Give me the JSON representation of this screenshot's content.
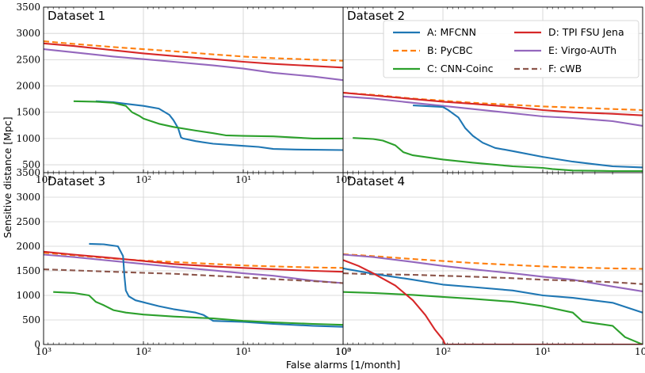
{
  "figure": {
    "xlabel": "False alarms [1/month]",
    "ylabel": "Sensitive distance [Mpc]"
  },
  "legend": [
    {
      "key": "A",
      "label": "A: MFCNN",
      "color": "#1f77b4",
      "dash": false
    },
    {
      "key": "B",
      "label": "B: PyCBC",
      "color": "#ff7f0e",
      "dash": true
    },
    {
      "key": "C",
      "label": "C: CNN-Coinc",
      "color": "#2ca02c",
      "dash": false
    },
    {
      "key": "D",
      "label": "D: TPI FSU Jena",
      "color": "#d62728",
      "dash": false
    },
    {
      "key": "E",
      "label": "E: Virgo-AUTh",
      "color": "#9467bd",
      "dash": false
    },
    {
      "key": "F",
      "label": "F: cWB",
      "color": "#8c564b",
      "dash": true
    }
  ],
  "chart_data": [
    {
      "type": "line",
      "title": "Dataset 1",
      "xscale": "log-reversed",
      "xlim": [
        1000,
        1
      ],
      "ylim": [
        350,
        3500
      ],
      "yticks": [
        "3500",
        "3000",
        "2500",
        "2000",
        "1500",
        "1000",
        "500"
      ],
      "xticks": [
        "10³",
        "10²",
        "10¹",
        "10⁰"
      ],
      "grid": true,
      "series": [
        {
          "key": "B",
          "name": "B: PyCBC",
          "x": [
            1000,
            500,
            200,
            100,
            50,
            20,
            10,
            5,
            2,
            1
          ],
          "y": [
            2850,
            2800,
            2740,
            2700,
            2660,
            2600,
            2560,
            2530,
            2500,
            2480
          ]
        },
        {
          "key": "D",
          "name": "D: TPI FSU Jena",
          "x": [
            1000,
            500,
            200,
            100,
            50,
            20,
            10,
            5,
            2,
            1
          ],
          "y": [
            2810,
            2760,
            2680,
            2620,
            2570,
            2510,
            2460,
            2420,
            2380,
            2350
          ]
        },
        {
          "key": "E",
          "name": "E: Virgo-AUTh",
          "x": [
            1000,
            500,
            200,
            100,
            50,
            20,
            10,
            5,
            2,
            1
          ],
          "y": [
            2700,
            2640,
            2560,
            2510,
            2460,
            2390,
            2330,
            2250,
            2180,
            2110
          ]
        },
        {
          "key": "A",
          "name": "A: MFCNN",
          "x": [
            300,
            200,
            150,
            100,
            70,
            55,
            50,
            45,
            42,
            40,
            30,
            20,
            10,
            7,
            5,
            3,
            2,
            1
          ],
          "y": [
            1710,
            1690,
            1660,
            1620,
            1570,
            1450,
            1350,
            1200,
            1020,
            1000,
            950,
            900,
            860,
            840,
            800,
            790,
            785,
            780
          ]
        },
        {
          "key": "C",
          "name": "C: CNN-Coinc",
          "x": [
            500,
            300,
            200,
            150,
            130,
            110,
            100,
            70,
            50,
            30,
            20,
            15,
            10,
            5,
            2,
            1
          ],
          "y": [
            1710,
            1700,
            1680,
            1620,
            1500,
            1430,
            1380,
            1280,
            1220,
            1150,
            1100,
            1060,
            1050,
            1040,
            1000,
            1000
          ]
        }
      ]
    },
    {
      "type": "line",
      "title": "Dataset 2",
      "xscale": "log-reversed",
      "xlim": [
        1000,
        1
      ],
      "ylim": [
        350,
        3500
      ],
      "yticks": [],
      "xticks": [],
      "grid": true,
      "series": [
        {
          "key": "B",
          "name": "B: PyCBC",
          "x": [
            1000,
            500,
            200,
            100,
            50,
            20,
            10,
            5,
            2,
            1
          ],
          "y": [
            1870,
            1830,
            1760,
            1720,
            1680,
            1640,
            1610,
            1590,
            1560,
            1540
          ]
        },
        {
          "key": "D",
          "name": "D: TPI FSU Jena",
          "x": [
            1000,
            500,
            200,
            100,
            50,
            20,
            10,
            5,
            2,
            1
          ],
          "y": [
            1870,
            1820,
            1750,
            1700,
            1660,
            1600,
            1540,
            1500,
            1470,
            1440
          ]
        },
        {
          "key": "E",
          "name": "E: Virgo-AUTh",
          "x": [
            1000,
            500,
            200,
            100,
            50,
            20,
            10,
            5,
            2,
            1
          ],
          "y": [
            1800,
            1760,
            1680,
            1620,
            1560,
            1480,
            1420,
            1390,
            1330,
            1240
          ]
        },
        {
          "key": "A",
          "name": "A: MFCNN",
          "x": [
            200,
            100,
            90,
            70,
            60,
            50,
            40,
            30,
            20,
            10,
            5,
            3,
            2,
            1
          ],
          "y": [
            1630,
            1600,
            1550,
            1400,
            1200,
            1050,
            920,
            820,
            760,
            650,
            560,
            510,
            470,
            450
          ]
        },
        {
          "key": "C",
          "name": "C: CNN-Coinc",
          "x": [
            800,
            500,
            400,
            300,
            250,
            200,
            100,
            50,
            20,
            10,
            8,
            5,
            2,
            1
          ],
          "y": [
            1010,
            990,
            960,
            870,
            740,
            680,
            600,
            540,
            470,
            440,
            420,
            390,
            380,
            380
          ]
        }
      ]
    },
    {
      "type": "line",
      "title": "Dataset 3",
      "xscale": "log-reversed",
      "xlim": [
        1000,
        1
      ],
      "ylim": [
        0,
        3500
      ],
      "yticks": [
        "3500",
        "3000",
        "2500",
        "2000",
        "1500",
        "1000",
        "500",
        "0"
      ],
      "xticks": [
        "10³",
        "10²",
        "10¹",
        "10⁰"
      ],
      "grid": true,
      "series": [
        {
          "key": "B",
          "name": "B: PyCBC",
          "x": [
            1000,
            500,
            200,
            100,
            50,
            20,
            10,
            5,
            2,
            1
          ],
          "y": [
            1870,
            1820,
            1750,
            1710,
            1680,
            1640,
            1610,
            1590,
            1570,
            1560
          ]
        },
        {
          "key": "D",
          "name": "D: TPI FSU Jena",
          "x": [
            1000,
            500,
            200,
            100,
            50,
            20,
            10,
            5,
            2,
            1
          ],
          "y": [
            1890,
            1830,
            1760,
            1700,
            1640,
            1590,
            1560,
            1530,
            1500,
            1480
          ]
        },
        {
          "key": "E",
          "name": "E: Virgo-AUTh",
          "x": [
            1000,
            500,
            200,
            100,
            50,
            20,
            10,
            5,
            2,
            1
          ],
          "y": [
            1830,
            1780,
            1700,
            1640,
            1580,
            1510,
            1450,
            1400,
            1300,
            1250
          ]
        },
        {
          "key": "F",
          "name": "F: cWB",
          "x": [
            1000,
            500,
            200,
            100,
            50,
            20,
            10,
            5,
            2,
            1
          ],
          "y": [
            1530,
            1510,
            1480,
            1460,
            1440,
            1400,
            1370,
            1330,
            1290,
            1250
          ]
        },
        {
          "key": "A",
          "name": "A: MFCNN",
          "x": [
            350,
            250,
            180,
            160,
            155,
            150,
            140,
            120,
            100,
            70,
            50,
            30,
            25,
            20,
            10,
            5,
            2,
            1
          ],
          "y": [
            2050,
            2040,
            2000,
            1800,
            1400,
            1100,
            980,
            900,
            860,
            780,
            720,
            650,
            600,
            480,
            460,
            420,
            380,
            360
          ]
        },
        {
          "key": "C",
          "name": "C: CNN-Coinc",
          "x": [
            800,
            500,
            350,
            300,
            250,
            200,
            150,
            100,
            50,
            20,
            10,
            5,
            2,
            1
          ],
          "y": [
            1070,
            1050,
            1000,
            870,
            800,
            700,
            650,
            610,
            570,
            530,
            480,
            450,
            420,
            400
          ]
        }
      ]
    },
    {
      "type": "line",
      "title": "Dataset 4",
      "xscale": "log-reversed",
      "xlim": [
        1000,
        1
      ],
      "ylim": [
        0,
        3500
      ],
      "yticks": [],
      "xticks": [
        "10³",
        "10²",
        "10¹",
        "10⁰"
      ],
      "grid": true,
      "series": [
        {
          "key": "B",
          "name": "B: PyCBC",
          "x": [
            1000,
            500,
            200,
            100,
            50,
            20,
            10,
            5,
            2,
            1
          ],
          "y": [
            1840,
            1800,
            1740,
            1700,
            1660,
            1620,
            1590,
            1570,
            1550,
            1540
          ]
        },
        {
          "key": "E",
          "name": "E: Virgo-AUTh",
          "x": [
            1000,
            500,
            200,
            100,
            50,
            20,
            10,
            5,
            2,
            1
          ],
          "y": [
            1830,
            1780,
            1680,
            1600,
            1530,
            1450,
            1380,
            1320,
            1180,
            1080
          ]
        },
        {
          "key": "F",
          "name": "F: cWB",
          "x": [
            1000,
            500,
            200,
            100,
            50,
            20,
            10,
            5,
            2,
            1
          ],
          "y": [
            1450,
            1430,
            1420,
            1400,
            1380,
            1350,
            1320,
            1300,
            1270,
            1230
          ]
        },
        {
          "key": "A",
          "name": "A: MFCNN",
          "x": [
            1000,
            500,
            200,
            100,
            50,
            20,
            10,
            5,
            2,
            1
          ],
          "y": [
            1550,
            1440,
            1320,
            1220,
            1170,
            1100,
            1000,
            950,
            850,
            650
          ]
        },
        {
          "key": "C",
          "name": "C: CNN-Coinc",
          "x": [
            1000,
            500,
            200,
            100,
            50,
            20,
            10,
            5,
            4,
            3,
            2,
            1.5,
            1
          ],
          "y": [
            1070,
            1050,
            1010,
            970,
            930,
            870,
            780,
            650,
            470,
            430,
            380,
            150,
            0
          ]
        },
        {
          "key": "D",
          "name": "D: TPI FSU Jena",
          "x": [
            1000,
            700,
            500,
            300,
            200,
            150,
            120,
            100,
            95,
            90,
            50,
            10,
            1
          ],
          "y": [
            1720,
            1600,
            1450,
            1200,
            900,
            600,
            300,
            100,
            0,
            0,
            0,
            0,
            0
          ]
        }
      ]
    }
  ]
}
